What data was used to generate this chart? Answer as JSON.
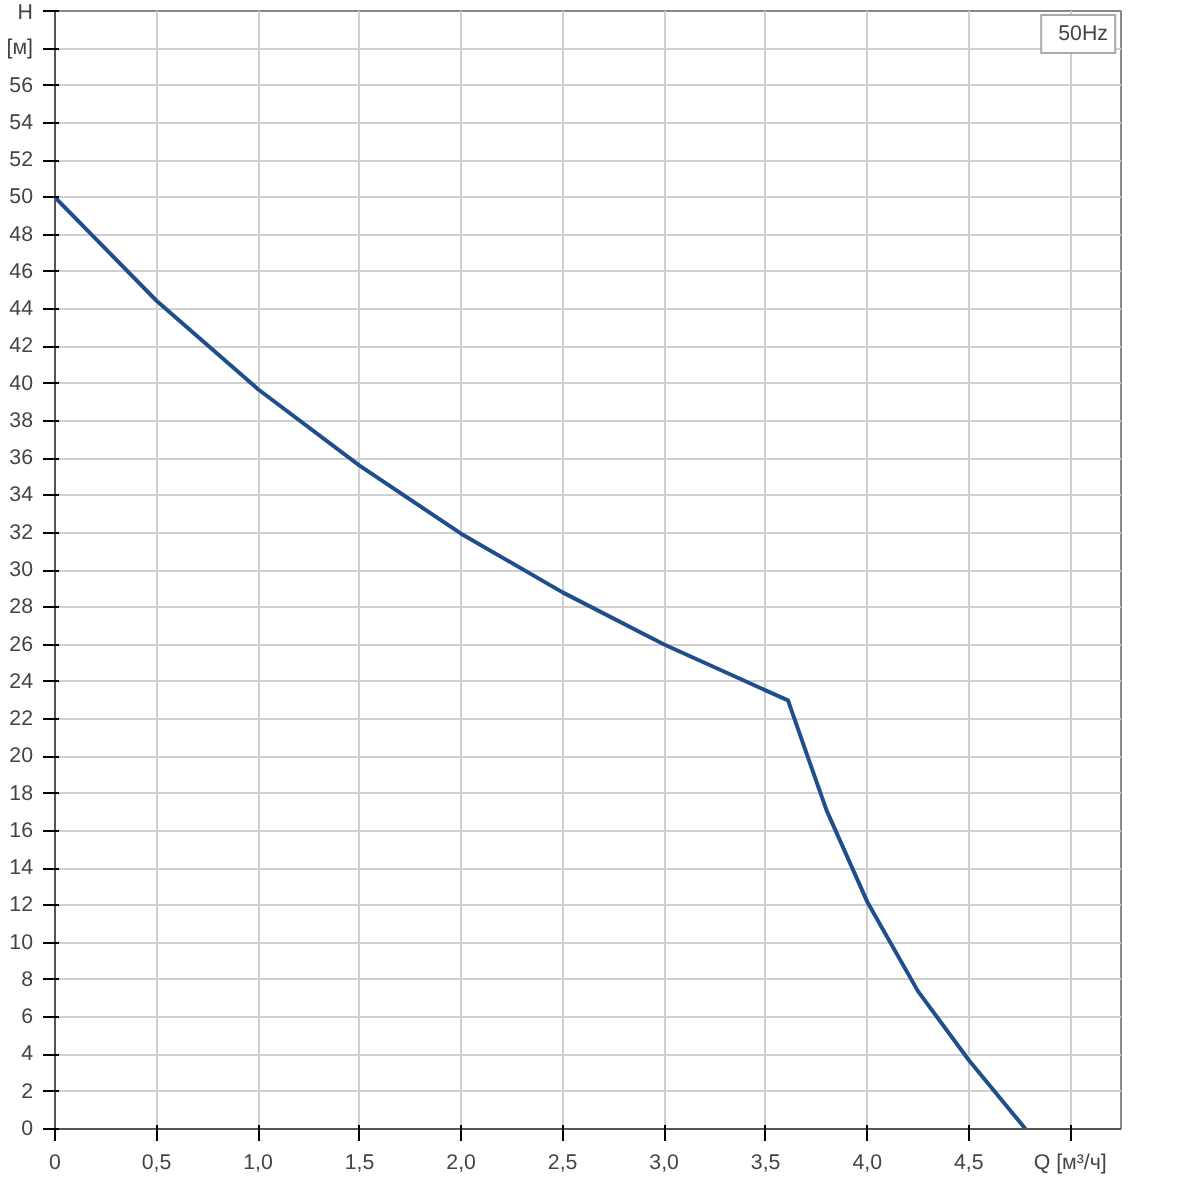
{
  "chart_data": {
    "type": "line",
    "x": [
      0,
      0.5,
      1.0,
      1.5,
      2.0,
      2.5,
      3.0,
      3.61,
      3.7,
      3.8,
      4.0,
      4.25,
      4.5,
      4.78
    ],
    "series": [
      {
        "name": "50Hz",
        "color": "#1f4e8c",
        "values": [
          50.0,
          44.45,
          39.7,
          35.6,
          31.95,
          28.8,
          26.0,
          23.0,
          20.2,
          17.1,
          12.2,
          7.4,
          3.7,
          0
        ]
      }
    ],
    "xlim": [
      0,
      5.25
    ],
    "xticks": [
      0,
      {
        "value": 0.5,
        "label": "0,5"
      },
      {
        "value": 1,
        "label": "1,0"
      },
      {
        "value": 1.5,
        "label": "1,5"
      },
      {
        "value": 2,
        "label": "2,0"
      },
      {
        "value": 2.5,
        "label": "2,5"
      },
      {
        "value": 3,
        "label": "3,0"
      },
      {
        "value": 3.5,
        "label": "3,5"
      },
      {
        "value": 4,
        "label": "4,0"
      },
      {
        "value": 4.5,
        "label": "4,5"
      },
      {
        "value": 5,
        "label": "Q [м³/ч]"
      }
    ],
    "ylim": [
      0,
      60
    ],
    "yticks": [
      0,
      2,
      4,
      6,
      8,
      10,
      12,
      14,
      16,
      18,
      20,
      22,
      24,
      26,
      28,
      30,
      32,
      34,
      36,
      38,
      40,
      42,
      44,
      46,
      48,
      50,
      52,
      54,
      56,
      {
        "value": 58,
        "label": "[м]"
      },
      {
        "value": 60,
        "label": "H"
      }
    ],
    "grid": true,
    "legend": "top right",
    "marker": "none",
    "line_style": "solid"
  }
}
